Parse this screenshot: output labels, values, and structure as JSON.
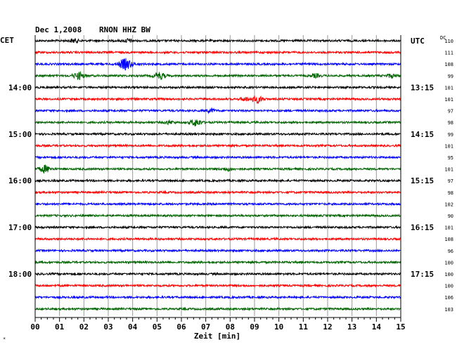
{
  "header": {
    "date": "Dec 1,2008",
    "station": "RNON HHZ BW",
    "left_zone": "CET",
    "right_zone": "UTC",
    "dc_label": "DC"
  },
  "chart_data": {
    "type": "line",
    "title": "Dec 1,2008   RNON HHZ BW",
    "xlabel": "Zeit [min]",
    "ylabel": "",
    "x_ticks": [
      "00",
      "01",
      "02",
      "03",
      "04",
      "05",
      "06",
      "07",
      "08",
      "09",
      "10",
      "11",
      "12",
      "13",
      "14",
      "15"
    ],
    "xlim": [
      0,
      15
    ],
    "grid": true,
    "trace_colors": [
      "#000000",
      "#ff0000",
      "#0000ff",
      "#006400"
    ],
    "left_hour_labels": [
      {
        "trace": 4,
        "label": "14:00"
      },
      {
        "trace": 8,
        "label": "15:00"
      },
      {
        "trace": 12,
        "label": "16:00"
      },
      {
        "trace": 16,
        "label": "17:00"
      },
      {
        "trace": 20,
        "label": "18:00"
      }
    ],
    "right_hour_labels": [
      {
        "trace": 0,
        "label": "UTC"
      },
      {
        "trace": 4,
        "label": "13:15"
      },
      {
        "trace": 8,
        "label": "14:15"
      },
      {
        "trace": 12,
        "label": "15:15"
      },
      {
        "trace": 16,
        "label": "16:15"
      },
      {
        "trace": 20,
        "label": "17:15"
      }
    ],
    "dc_values": [
      "110",
      "111",
      "108",
      "99",
      "101",
      "101",
      "97",
      "98",
      "99",
      "101",
      "95",
      "101",
      "97",
      "98",
      "102",
      "90",
      "101",
      "108",
      "96",
      "100",
      "100",
      "100",
      "106",
      "103"
    ],
    "events": [
      {
        "trace": 2,
        "minute": 3.7,
        "strength": 3
      },
      {
        "trace": 3,
        "minute": 1.8,
        "strength": 2
      },
      {
        "trace": 3,
        "minute": 5.1,
        "strength": 2
      },
      {
        "trace": 3,
        "minute": 11.5,
        "strength": 1
      },
      {
        "trace": 3,
        "minute": 14.6,
        "strength": 1
      },
      {
        "trace": 5,
        "minute": 9.1,
        "strength": 2
      },
      {
        "trace": 5,
        "minute": 8.6,
        "strength": 1
      },
      {
        "trace": 6,
        "minute": 7.2,
        "strength": 1
      },
      {
        "trace": 7,
        "minute": 6.6,
        "strength": 2
      },
      {
        "trace": 7,
        "minute": 5.5,
        "strength": 1
      },
      {
        "trace": 11,
        "minute": 0.4,
        "strength": 2
      },
      {
        "trace": 11,
        "minute": 7.9,
        "strength": 1
      },
      {
        "trace": 0,
        "minute": 1.6,
        "strength": 1
      },
      {
        "trace": 0,
        "minute": 3.8,
        "strength": 1
      }
    ]
  }
}
